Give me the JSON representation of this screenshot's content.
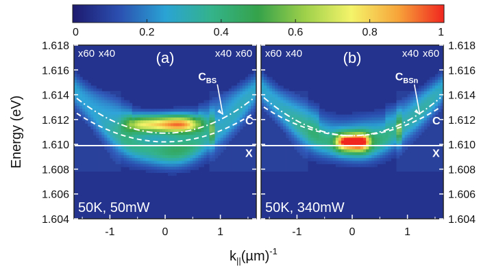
{
  "chart_data": {
    "type": "heatmap",
    "colorbar": {
      "min": 0,
      "max": 1,
      "tick_labels": [
        "0",
        "0.2",
        "0.4",
        "0.6",
        "0.8",
        "1"
      ],
      "ticks": [
        0,
        0.2,
        0.4,
        0.6,
        0.8,
        1
      ],
      "colormap": [
        "#1d1a6e",
        "#2b4fb0",
        "#2aa3d4",
        "#34b38a",
        "#35a24a",
        "#9ed04a",
        "#f4f46a",
        "#f7a53a",
        "#f0261f"
      ]
    },
    "xlabel": "k",
    "xlabel_sub": "||",
    "xlabel_unit": "(µm)",
    "xlabel_sup": "-1",
    "ylabel": "Energy (eV)",
    "xlim": [
      -1.65,
      1.65
    ],
    "ylim": [
      1.604,
      1.618
    ],
    "x_ticks": [
      -1,
      0,
      1
    ],
    "x_tick_labels": [
      "-1",
      "0",
      "1"
    ],
    "y_ticks": [
      1.604,
      1.606,
      1.608,
      1.61,
      1.612,
      1.614,
      1.616,
      1.618
    ],
    "y_tick_labels": [
      "1.604",
      "1.606",
      "1.608",
      "1.610",
      "1.612",
      "1.614",
      "1.616",
      "1.618"
    ],
    "panels": [
      {
        "label": "(a)",
        "condition": "50K, 50mW",
        "scale_labels": [
          "x60",
          "x40",
          "x40",
          "x60"
        ],
        "scale_regions": [
          [
            -1.65,
            -1.2
          ],
          [
            -1.2,
            -0.8
          ],
          [
            0.8,
            1.2
          ],
          [
            1.2,
            1.65
          ]
        ],
        "scale_factors": [
          60,
          40,
          40,
          60
        ],
        "annotations": {
          "cbs_main": "C",
          "cbs_sub": "BS",
          "cbs_x": 0.97,
          "cbs_e": 1.6145,
          "c": "C",
          "x": "X"
        },
        "exciton_energy": 1.6099,
        "cavity_mode": {
          "e0": 1.6109,
          "curvature": 0.0011
        },
        "lower_branch": {
          "e0": 1.6095,
          "curvature": 0.0016
        },
        "condensate": {
          "e0": 1.6116,
          "kmax": 0.7,
          "peak": 0.98
        }
      },
      {
        "label": "(b)",
        "condition": "50K, 340mW",
        "scale_labels": [
          "x60",
          "x40",
          "x40",
          "x60"
        ],
        "scale_regions": [
          [
            -1.65,
            -1.2
          ],
          [
            -1.2,
            -0.8
          ],
          [
            0.8,
            1.2
          ],
          [
            1.2,
            1.65
          ]
        ],
        "scale_factors": [
          60,
          40,
          40,
          60
        ],
        "annotations": {
          "cbs_main": "C",
          "cbs_sub": "BSn",
          "cbs_x": 1.15,
          "cbs_e": 1.6145,
          "c": "C",
          "x": "X"
        },
        "exciton_energy": 1.6099,
        "cavity_mode": {
          "e0": 1.6107,
          "curvature": 0.0012
        },
        "lower_branch": {
          "e0": 1.61,
          "curvature": 0.0015
        },
        "condensate": {
          "e0": 1.6102,
          "kmax": 0.3,
          "peak": 1.0
        }
      }
    ]
  }
}
